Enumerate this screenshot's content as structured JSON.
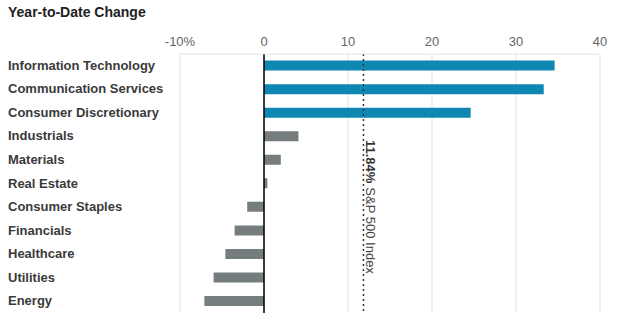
{
  "chart_data": {
    "type": "bar",
    "title": "Year-to-Date Change",
    "orientation": "horizontal",
    "categories": [
      "Information Technology",
      "Communication Services",
      "Consumer Discretionary",
      "Industrials",
      "Materials",
      "Real Estate",
      "Consumer Staples",
      "Financials",
      "Healthcare",
      "Utilities",
      "Energy"
    ],
    "values": [
      34.6,
      33.3,
      24.6,
      4.1,
      2.0,
      0.4,
      -2.0,
      -3.5,
      -4.6,
      -6.0,
      -7.1
    ],
    "colors": [
      "#0e88b3",
      "#0e88b3",
      "#0e88b3",
      "#767d7e",
      "#767d7e",
      "#767d7e",
      "#767d7e",
      "#767d7e",
      "#767d7e",
      "#767d7e",
      "#767d7e"
    ],
    "xlim": [
      -10,
      40
    ],
    "xticks": [
      {
        "value": -10,
        "label": "-10%"
      },
      0,
      10,
      20,
      30,
      40
    ],
    "grid": true,
    "annotations": [
      {
        "value": 11.84,
        "label": "11.84%",
        "text": "S&P 500 Index"
      }
    ]
  }
}
